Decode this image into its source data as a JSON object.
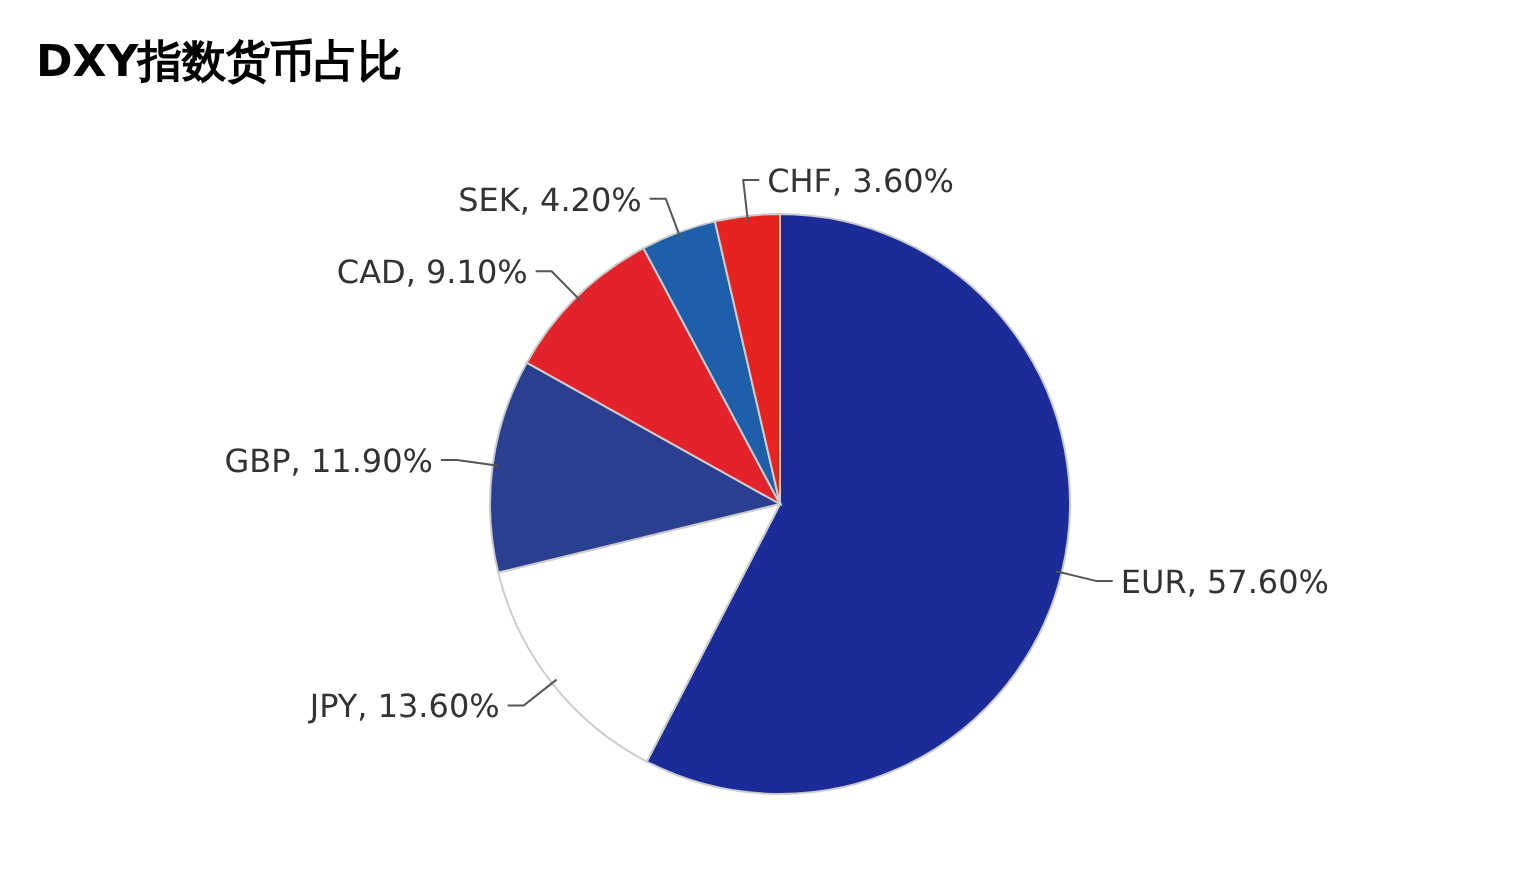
{
  "chart_data": {
    "type": "pie",
    "title": "DXY指数货币占比",
    "categories": [
      "EUR",
      "JPY",
      "GBP",
      "CAD",
      "SEK",
      "CHF"
    ],
    "values": [
      57.6,
      13.6,
      11.9,
      9.1,
      4.2,
      3.6
    ],
    "value_labels": [
      "57.60%",
      "13.60%",
      "11.90%",
      "9.10%",
      "4.20%",
      "3.60%"
    ],
    "colors": [
      "#1b2c98",
      "#ffffff",
      "#2a3f8f",
      "#e3232b",
      "#1d5fa8",
      "#e52421"
    ],
    "legend": false
  }
}
